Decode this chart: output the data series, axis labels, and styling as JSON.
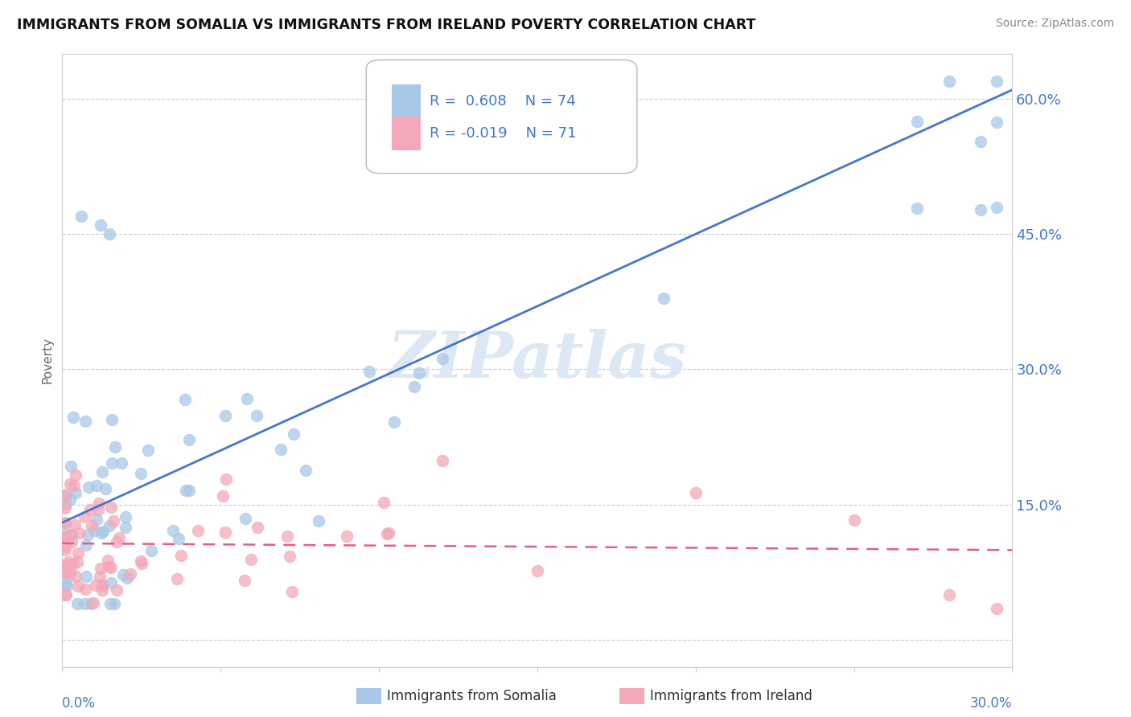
{
  "title": "IMMIGRANTS FROM SOMALIA VS IMMIGRANTS FROM IRELAND POVERTY CORRELATION CHART",
  "source": "Source: ZipAtlas.com",
  "ylabel": "Poverty",
  "xlim": [
    0.0,
    0.3
  ],
  "ylim": [
    -0.03,
    0.65
  ],
  "yticks": [
    0.0,
    0.15,
    0.3,
    0.45,
    0.6
  ],
  "R_somalia": 0.608,
  "N_somalia": 74,
  "R_ireland": -0.019,
  "N_ireland": 71,
  "somalia_color": "#a8c8e8",
  "ireland_color": "#f4a8b8",
  "trendline_somalia_color": "#4477cc",
  "trendline_ireland_color": "#e06080",
  "legend_somalia": "Immigrants from Somalia",
  "legend_ireland": "Immigrants from Ireland",
  "watermark": "ZIPatlas",
  "watermark_color": "#dde8f5",
  "title_color": "#111111",
  "source_color": "#888888",
  "axis_label_color": "#4477cc",
  "ylabel_color": "#666666",
  "grid_color": "#cccccc",
  "spine_color": "#cccccc"
}
